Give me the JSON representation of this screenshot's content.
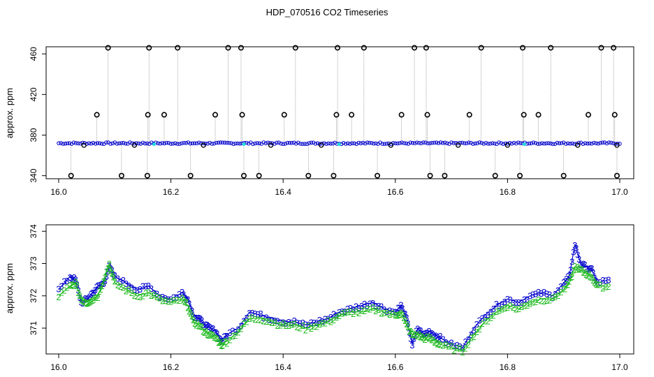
{
  "title": "HDP_070516  CO2 Timeseries",
  "colors": {
    "series1": "#0000cc",
    "series2": "#22bb22",
    "flagged": "#000000",
    "marker": "#22dddd",
    "connector": "#999999"
  },
  "chart_data": [
    {
      "type": "line",
      "title": "HDP_070516  CO2 Timeseries",
      "ylabel": "approx. ppm",
      "xlim": [
        16.0,
        17.0
      ],
      "ylim": [
        337,
        467
      ],
      "x_ticks": [
        "16.0",
        "16.2",
        "16.4",
        "16.6",
        "16.8",
        "17.0"
      ],
      "y_ticks": [
        "340",
        "380",
        "420",
        "460"
      ],
      "baseline_ppm": 372,
      "flagged_high_points": [
        {
          "x": 16.068,
          "y": 400
        },
        {
          "x": 16.088,
          "y": 466
        },
        {
          "x": 16.159,
          "y": 400
        },
        {
          "x": 16.161,
          "y": 466
        },
        {
          "x": 16.188,
          "y": 400
        },
        {
          "x": 16.212,
          "y": 466
        },
        {
          "x": 16.279,
          "y": 400
        },
        {
          "x": 16.302,
          "y": 466
        },
        {
          "x": 16.325,
          "y": 466
        },
        {
          "x": 16.327,
          "y": 400
        },
        {
          "x": 16.402,
          "y": 400
        },
        {
          "x": 16.422,
          "y": 466
        },
        {
          "x": 16.495,
          "y": 400
        },
        {
          "x": 16.497,
          "y": 466
        },
        {
          "x": 16.522,
          "y": 400
        },
        {
          "x": 16.544,
          "y": 466
        },
        {
          "x": 16.611,
          "y": 400
        },
        {
          "x": 16.634,
          "y": 466
        },
        {
          "x": 16.655,
          "y": 466
        },
        {
          "x": 16.657,
          "y": 400
        },
        {
          "x": 16.732,
          "y": 400
        },
        {
          "x": 16.753,
          "y": 466
        },
        {
          "x": 16.827,
          "y": 466
        },
        {
          "x": 16.829,
          "y": 400
        },
        {
          "x": 16.855,
          "y": 400
        },
        {
          "x": 16.877,
          "y": 466
        },
        {
          "x": 16.944,
          "y": 400
        },
        {
          "x": 16.967,
          "y": 466
        },
        {
          "x": 16.989,
          "y": 466
        },
        {
          "x": 16.991,
          "y": 400
        }
      ],
      "flagged_low_points": [
        {
          "x": 16.022,
          "y": 340
        },
        {
          "x": 16.112,
          "y": 340
        },
        {
          "x": 16.158,
          "y": 340
        },
        {
          "x": 16.235,
          "y": 340
        },
        {
          "x": 16.33,
          "y": 340
        },
        {
          "x": 16.357,
          "y": 340
        },
        {
          "x": 16.445,
          "y": 340
        },
        {
          "x": 16.49,
          "y": 340
        },
        {
          "x": 16.568,
          "y": 340
        },
        {
          "x": 16.662,
          "y": 340
        },
        {
          "x": 16.688,
          "y": 340
        },
        {
          "x": 16.778,
          "y": 340
        },
        {
          "x": 16.822,
          "y": 340
        },
        {
          "x": 16.9,
          "y": 340
        },
        {
          "x": 16.995,
          "y": 340
        }
      ],
      "near_baseline_flags": [
        {
          "x": 16.045,
          "y": 370
        },
        {
          "x": 16.135,
          "y": 370
        },
        {
          "x": 16.258,
          "y": 370
        },
        {
          "x": 16.378,
          "y": 370
        },
        {
          "x": 16.468,
          "y": 370
        },
        {
          "x": 16.592,
          "y": 370
        },
        {
          "x": 16.712,
          "y": 370
        },
        {
          "x": 16.8,
          "y": 370
        },
        {
          "x": 16.925,
          "y": 370
        },
        {
          "x": 16.995,
          "y": 370
        }
      ]
    },
    {
      "type": "line",
      "ylabel": "approx. ppm",
      "xlim": [
        16.0,
        17.0
      ],
      "ylim": [
        370.2,
        374.2
      ],
      "x_ticks": [
        "16.0",
        "16.2",
        "16.4",
        "16.6",
        "16.8",
        "17.0"
      ],
      "y_ticks": [
        "371",
        "372",
        "373",
        "374"
      ],
      "series": [
        {
          "symbol": "3",
          "x": [
            16.0,
            16.02,
            16.03,
            16.04,
            16.05,
            16.06,
            16.07,
            16.08,
            16.09,
            16.1,
            16.12,
            16.14,
            16.16,
            16.18,
            16.2,
            16.22,
            16.23,
            16.24,
            16.25,
            16.26,
            16.27,
            16.28,
            16.29,
            16.3,
            16.32,
            16.34,
            16.36,
            16.38,
            16.4,
            16.42,
            16.44,
            16.46,
            16.48,
            16.5,
            16.52,
            16.54,
            16.56,
            16.58,
            16.6,
            16.61,
            16.62,
            16.63,
            16.64,
            16.65,
            16.66,
            16.67,
            16.68,
            16.7,
            16.72,
            16.74,
            16.76,
            16.78,
            16.8,
            16.82,
            16.84,
            16.86,
            16.88,
            16.9,
            16.91,
            16.92,
            16.93,
            16.94,
            16.95,
            16.96,
            16.98
          ],
          "values": [
            372.2,
            372.6,
            372.5,
            371.8,
            371.9,
            372.1,
            372.3,
            372.4,
            372.9,
            372.6,
            372.4,
            372.2,
            372.3,
            372.0,
            371.9,
            372.1,
            371.9,
            371.4,
            371.3,
            371.1,
            371.0,
            370.9,
            370.6,
            370.8,
            371.0,
            371.5,
            371.4,
            371.3,
            371.2,
            371.2,
            371.1,
            371.2,
            371.3,
            371.5,
            371.6,
            371.7,
            371.8,
            371.6,
            371.5,
            371.7,
            371.3,
            370.5,
            371.0,
            370.8,
            370.9,
            370.8,
            370.7,
            370.5,
            370.4,
            371.0,
            371.4,
            371.7,
            371.9,
            371.8,
            372.0,
            372.1,
            372.0,
            372.4,
            372.6,
            373.6,
            373.0,
            372.9,
            372.8,
            372.4,
            372.5
          ]
        },
        {
          "symbol": "2",
          "x": [
            16.0,
            16.02,
            16.03,
            16.04,
            16.05,
            16.06,
            16.07,
            16.08,
            16.09,
            16.1,
            16.12,
            16.14,
            16.16,
            16.18,
            16.2,
            16.22,
            16.23,
            16.24,
            16.25,
            16.26,
            16.27,
            16.28,
            16.29,
            16.3,
            16.32,
            16.34,
            16.36,
            16.38,
            16.4,
            16.42,
            16.44,
            16.46,
            16.48,
            16.5,
            16.52,
            16.54,
            16.56,
            16.58,
            16.6,
            16.61,
            16.62,
            16.63,
            16.64,
            16.65,
            16.66,
            16.67,
            16.68,
            16.7,
            16.72,
            16.74,
            16.76,
            16.78,
            16.8,
            16.82,
            16.84,
            16.86,
            16.88,
            16.9,
            16.91,
            16.92,
            16.93,
            16.94,
            16.95,
            16.96,
            16.98
          ],
          "values": [
            372.0,
            372.3,
            372.4,
            371.9,
            371.8,
            371.9,
            372.0,
            372.5,
            373.0,
            372.4,
            372.2,
            372.0,
            372.1,
            371.9,
            371.8,
            371.9,
            371.7,
            371.2,
            371.1,
            370.9,
            370.8,
            370.7,
            370.5,
            370.6,
            370.9,
            371.3,
            371.3,
            371.2,
            371.1,
            371.1,
            371.0,
            371.1,
            371.2,
            371.4,
            371.5,
            371.5,
            371.6,
            371.5,
            371.4,
            371.5,
            371.1,
            370.8,
            370.8,
            370.7,
            370.7,
            370.6,
            370.5,
            370.4,
            370.3,
            370.8,
            371.2,
            371.5,
            371.7,
            371.6,
            371.8,
            371.9,
            371.9,
            372.2,
            372.4,
            372.9,
            372.8,
            372.7,
            372.6,
            372.3,
            372.3
          ]
        }
      ]
    }
  ]
}
